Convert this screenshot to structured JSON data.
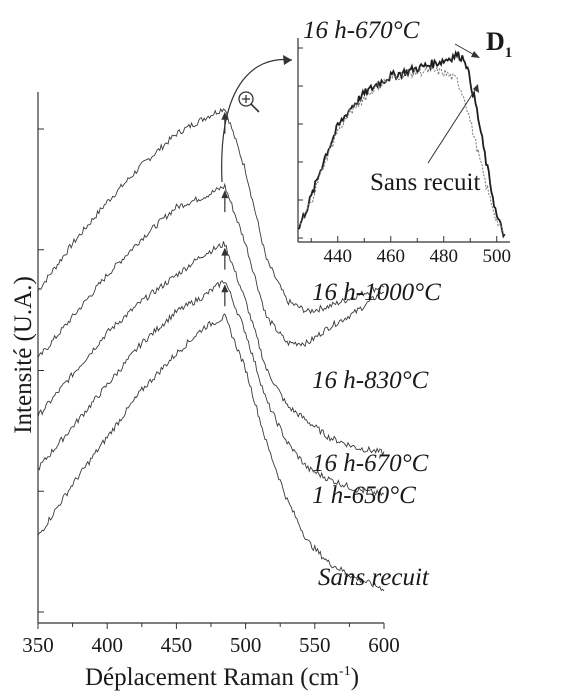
{
  "chart_data": [
    {
      "type": "line",
      "xlabel": "Déplacement Raman (cm",
      "xlabel_sup": "-1",
      "xlabel_tail": ")",
      "ylabel": "Intensité (U.A.)",
      "xlim": [
        350,
        600
      ],
      "x_ticks": [
        "350",
        "400",
        "450",
        "500",
        "550",
        "600"
      ],
      "peak_marker_x": 485,
      "series": [
        {
          "name": "16 h-1000°C",
          "x": [
            350,
            375,
            400,
            425,
            450,
            470,
            485,
            500,
            515,
            530,
            545,
            560,
            580,
            600
          ],
          "y": [
            0.62,
            0.71,
            0.79,
            0.86,
            0.92,
            0.95,
            0.97,
            0.85,
            0.68,
            0.6,
            0.58,
            0.59,
            0.61,
            0.63
          ]
        },
        {
          "name": "16 h-830°C",
          "x": [
            350,
            375,
            400,
            425,
            450,
            470,
            485,
            500,
            515,
            530,
            545,
            560,
            580,
            600
          ],
          "y": [
            0.49,
            0.57,
            0.65,
            0.72,
            0.78,
            0.8,
            0.82,
            0.71,
            0.57,
            0.52,
            0.52,
            0.55,
            0.58,
            0.62
          ]
        },
        {
          "name": "16 h-670°C",
          "x": [
            350,
            375,
            400,
            425,
            450,
            470,
            485,
            500,
            515,
            530,
            545,
            560,
            580,
            600
          ],
          "y": [
            0.38,
            0.46,
            0.54,
            0.6,
            0.65,
            0.69,
            0.71,
            0.6,
            0.47,
            0.4,
            0.37,
            0.34,
            0.32,
            0.31
          ]
        },
        {
          "name": "1 h-650°C",
          "x": [
            350,
            375,
            400,
            425,
            450,
            470,
            485,
            500,
            515,
            530,
            545,
            560,
            580,
            600
          ],
          "y": [
            0.28,
            0.36,
            0.44,
            0.52,
            0.58,
            0.61,
            0.64,
            0.54,
            0.41,
            0.33,
            0.28,
            0.26,
            0.24,
            0.23
          ]
        },
        {
          "name": "Sans recuit",
          "x": [
            350,
            375,
            400,
            425,
            450,
            470,
            485,
            500,
            515,
            530,
            545,
            560,
            580,
            600
          ],
          "y": [
            0.15,
            0.25,
            0.34,
            0.43,
            0.5,
            0.55,
            0.57,
            0.47,
            0.33,
            0.22,
            0.14,
            0.1,
            0.07,
            0.05
          ]
        }
      ]
    },
    {
      "type": "line",
      "inset": true,
      "xlim": [
        425,
        505
      ],
      "x_ticks": [
        "440",
        "460",
        "480",
        "500"
      ],
      "peak_label": "D",
      "peak_label_sub": "1",
      "series": [
        {
          "name": "16 h-670°C",
          "x": [
            425,
            430,
            435,
            440,
            445,
            450,
            455,
            460,
            465,
            470,
            475,
            480,
            485,
            488,
            492,
            496,
            500,
            503
          ],
          "y": [
            0.05,
            0.22,
            0.42,
            0.58,
            0.68,
            0.75,
            0.8,
            0.84,
            0.86,
            0.88,
            0.9,
            0.92,
            0.95,
            0.93,
            0.7,
            0.4,
            0.12,
            0.02
          ]
        },
        {
          "name": "Sans recuit",
          "x": [
            425,
            430,
            435,
            440,
            445,
            450,
            455,
            460,
            465,
            470,
            475,
            480,
            485,
            488,
            492,
            496,
            500,
            503
          ],
          "y": [
            0.05,
            0.2,
            0.4,
            0.56,
            0.66,
            0.73,
            0.79,
            0.83,
            0.85,
            0.86,
            0.87,
            0.86,
            0.82,
            0.72,
            0.5,
            0.28,
            0.1,
            0.02
          ]
        }
      ]
    }
  ]
}
